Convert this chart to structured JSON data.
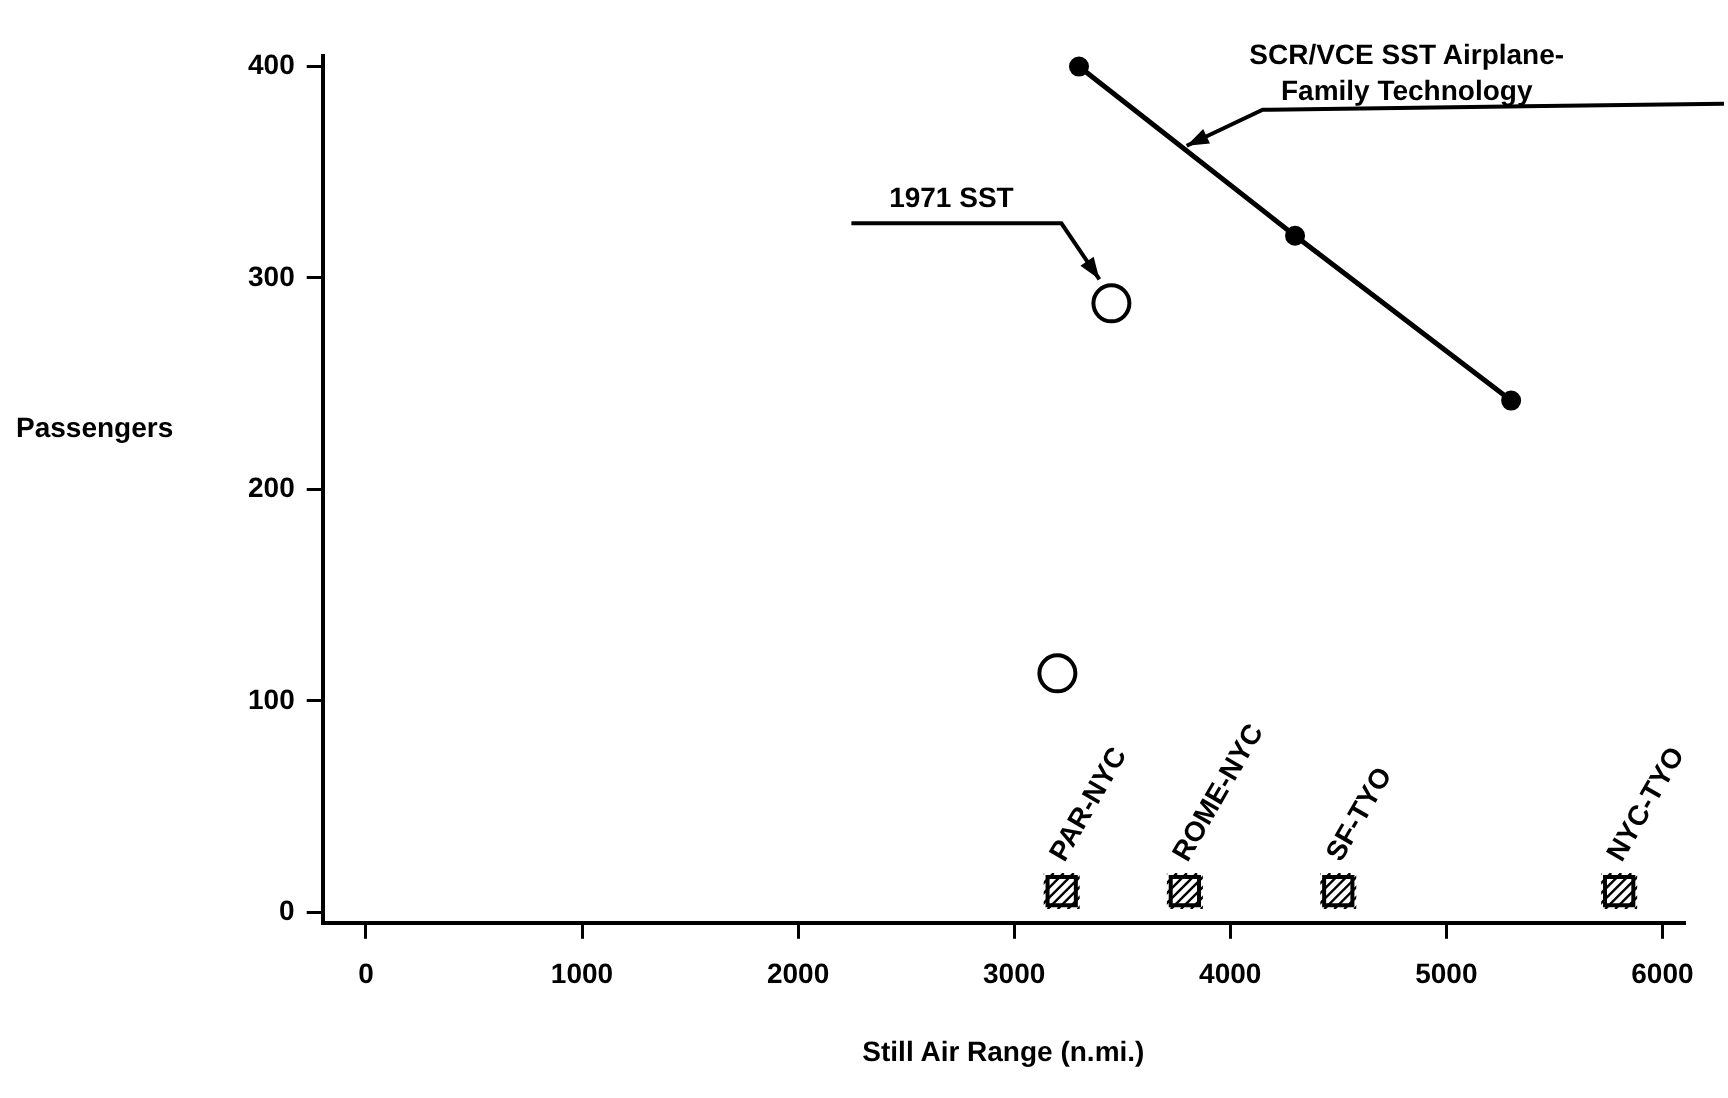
{
  "chart_data": {
    "type": "scatter",
    "xlabel": "Still Air Range (n.mi.)",
    "ylabel": "Passengers",
    "xlim": [
      -200,
      6100
    ],
    "xticks": [
      0,
      1000,
      2000,
      3000,
      4000,
      5000,
      6000
    ],
    "ylim": [
      -5,
      405
    ],
    "yticks": [
      0,
      100,
      200,
      300,
      400
    ],
    "grid": false,
    "legend": false,
    "series": [
      {
        "name": "SCR/VCE SST Airplane-Family Technology",
        "type": "line",
        "color": "#000000",
        "marker": "circle",
        "x": [
          3300,
          4300,
          5300
        ],
        "values": [
          400,
          320,
          242
        ]
      },
      {
        "name": "1971 SST",
        "type": "scatter",
        "color": "#000000",
        "marker": "circle",
        "x": [
          3450
        ],
        "values": [
          288
        ]
      },
      {
        "type": "scatter",
        "color": "#000000",
        "marker": "circle",
        "x": [
          3200
        ],
        "values": [
          113
        ]
      },
      {
        "type": "scatter",
        "color": "#000000",
        "marker": "square",
        "x": [
          3220,
          3790,
          4500,
          5800
        ],
        "values": [
          10,
          10,
          10,
          10
        ]
      }
    ],
    "annotations": [
      {
        "text": "PAR-NYC",
        "x": 3220,
        "y": 10
      },
      {
        "text": "ROME-NYC",
        "x": 3790,
        "y": 10
      },
      {
        "text": "SF-TYO",
        "x": 4500,
        "y": 10
      },
      {
        "text": "NYC-TYO",
        "x": 5800,
        "y": 10
      }
    ]
  }
}
